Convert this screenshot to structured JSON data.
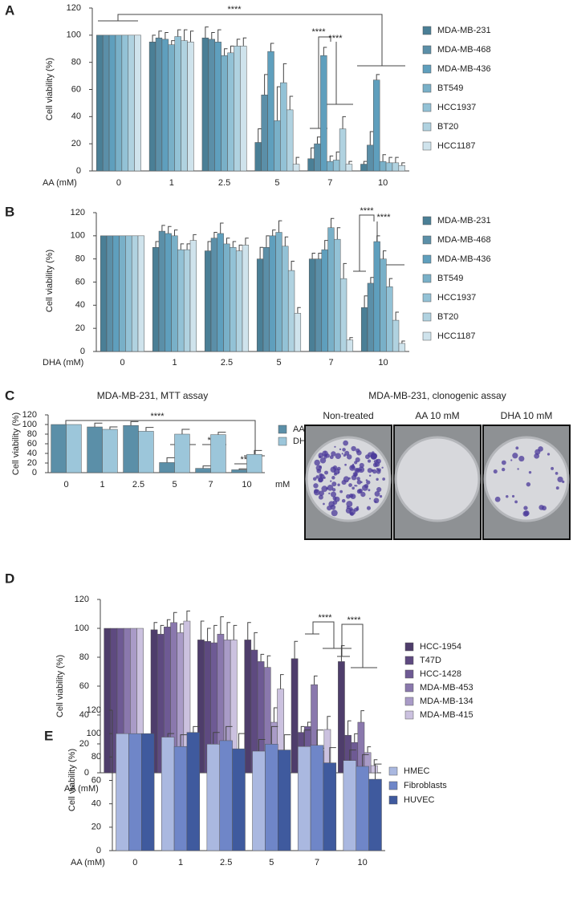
{
  "chart_data": [
    {
      "type": "bar",
      "panel_label": "A",
      "x_label": "AA (mM)",
      "y_label": "Cell viability (%)",
      "categories": [
        "0",
        "1",
        "2.5",
        "5",
        "7",
        "10"
      ],
      "ylim": [
        0,
        120
      ],
      "yticks": [
        0,
        20,
        40,
        60,
        80,
        100,
        120
      ],
      "annotations": [
        "****",
        "****",
        "****"
      ],
      "series": [
        {
          "name": "MDA-MB-231",
          "color": "#4a7f96",
          "values": [
            100,
            95,
            98,
            21,
            9,
            5
          ],
          "errors": [
            0,
            5,
            8,
            10,
            8,
            2
          ]
        },
        {
          "name": "MDA-MB-468",
          "color": "#5b8fa8",
          "values": [
            100,
            98,
            97,
            56,
            20,
            19
          ],
          "errors": [
            0,
            5,
            5,
            15,
            5,
            10
          ]
        },
        {
          "name": "MDA-MB-436",
          "color": "#5f9fbd",
          "values": [
            100,
            97,
            95,
            88,
            85,
            67
          ],
          "errors": [
            0,
            5,
            9,
            6,
            6,
            4
          ]
        },
        {
          "name": "BT549",
          "color": "#79b0c8",
          "values": [
            100,
            93,
            85,
            37,
            7,
            7
          ],
          "errors": [
            0,
            3,
            5,
            25,
            4,
            5
          ]
        },
        {
          "name": "HCC1937",
          "color": "#93c2d6",
          "values": [
            100,
            99,
            87,
            65,
            8,
            6
          ],
          "errors": [
            0,
            5,
            5,
            14,
            6,
            4
          ]
        },
        {
          "name": "BT20",
          "color": "#b0d2e0",
          "values": [
            100,
            96,
            92,
            45,
            31,
            6
          ],
          "errors": [
            0,
            8,
            5,
            10,
            9,
            4
          ]
        },
        {
          "name": "HCC1187",
          "color": "#cfe3ec",
          "values": [
            100,
            95,
            92,
            5,
            5,
            4
          ],
          "errors": [
            0,
            8,
            6,
            5,
            2,
            2
          ]
        }
      ]
    },
    {
      "type": "bar",
      "panel_label": "B",
      "x_label": "DHA (mM)",
      "y_label": "Cell viability (%)",
      "categories": [
        "0",
        "1",
        "2.5",
        "5",
        "7",
        "10"
      ],
      "ylim": [
        0,
        120
      ],
      "yticks": [
        0,
        20,
        40,
        60,
        80,
        100,
        120
      ],
      "annotations": [
        "****",
        "****"
      ],
      "series": [
        {
          "name": "MDA-MB-231",
          "color": "#4a7f96",
          "values": [
            100,
            90,
            87,
            80,
            80,
            38
          ],
          "errors": [
            0,
            5,
            8,
            10,
            5,
            10
          ]
        },
        {
          "name": "MDA-MB-468",
          "color": "#5b8fa8",
          "values": [
            100,
            104,
            98,
            90,
            80,
            59
          ],
          "errors": [
            0,
            5,
            5,
            10,
            5,
            5
          ]
        },
        {
          "name": "MDA-MB-436",
          "color": "#5f9fbd",
          "values": [
            100,
            102,
            102,
            100,
            88,
            95
          ],
          "errors": [
            0,
            6,
            9,
            5,
            8,
            5
          ]
        },
        {
          "name": "BT549",
          "color": "#79b0c8",
          "values": [
            100,
            100,
            93,
            103,
            107,
            80
          ],
          "errors": [
            0,
            5,
            5,
            10,
            8,
            7
          ]
        },
        {
          "name": "HCC1937",
          "color": "#93c2d6",
          "values": [
            100,
            88,
            90,
            91,
            97,
            56
          ],
          "errors": [
            0,
            5,
            5,
            8,
            10,
            7
          ]
        },
        {
          "name": "BT20",
          "color": "#b0d2e0",
          "values": [
            100,
            88,
            87,
            70,
            63,
            27
          ],
          "errors": [
            0,
            5,
            5,
            8,
            13,
            7
          ]
        },
        {
          "name": "HCC1187",
          "color": "#cfe3ec",
          "values": [
            100,
            96,
            92,
            33,
            10,
            7
          ],
          "errors": [
            0,
            5,
            6,
            5,
            2,
            2
          ]
        }
      ]
    },
    {
      "type": "bar",
      "panel_label": "C",
      "title": "MDA-MB-231, MTT assay",
      "x_label": "mM",
      "y_label": "Cell viability (%)",
      "categories": [
        "0",
        "1",
        "2.5",
        "5",
        "7",
        "10"
      ],
      "ylim": [
        0,
        120
      ],
      "yticks": [
        0,
        20,
        40,
        60,
        80,
        100,
        120
      ],
      "annotations": [
        "****",
        "****",
        "****",
        "****"
      ],
      "image_title": "MDA-MB-231, clonogenic assay",
      "image_labels": [
        "Non-treated",
        "AA 10 mM",
        "DHA 10 mM"
      ],
      "series": [
        {
          "name": "AA",
          "color": "#5b8fa8",
          "values": [
            100,
            95,
            98,
            21,
            9,
            6
          ],
          "errors": [
            0,
            8,
            8,
            10,
            5,
            2
          ]
        },
        {
          "name": "DHA",
          "color": "#9cc6da",
          "values": [
            100,
            90,
            86,
            80,
            79,
            38
          ],
          "errors": [
            0,
            5,
            8,
            10,
            5,
            8
          ]
        }
      ]
    },
    {
      "type": "bar",
      "panel_label": "D",
      "x_label": "AA (mM)",
      "y_label": "Cell viability (%)",
      "categories": [
        "0",
        "1",
        "2.5",
        "5",
        "7",
        "10"
      ],
      "ylim": [
        0,
        120
      ],
      "yticks": [
        0,
        20,
        40,
        60,
        80,
        100,
        120
      ],
      "annotations": [
        "****",
        "****"
      ],
      "series": [
        {
          "name": "HCC-1954",
          "color": "#4e3d6b",
          "values": [
            100,
            99,
            92,
            92,
            79,
            77
          ],
          "errors": [
            0,
            5,
            13,
            12,
            12,
            11
          ]
        },
        {
          "name": "T47D",
          "color": "#5e4a80",
          "values": [
            100,
            96,
            91,
            85,
            28,
            26
          ],
          "errors": [
            0,
            6,
            9,
            12,
            4,
            10
          ]
        },
        {
          "name": "HCC-1428",
          "color": "#6e5a94",
          "values": [
            100,
            101,
            90,
            77,
            32,
            21
          ],
          "errors": [
            0,
            5,
            12,
            5,
            3,
            6
          ]
        },
        {
          "name": "MDA-MB-453",
          "color": "#8a78ad",
          "values": [
            100,
            104,
            96,
            73,
            61,
            35
          ],
          "errors": [
            0,
            7,
            12,
            8,
            6,
            8
          ]
        },
        {
          "name": "MDA-MB-134",
          "color": "#a99bc7",
          "values": [
            100,
            97,
            92,
            35,
            15,
            14
          ],
          "errors": [
            0,
            6,
            12,
            10,
            2,
            4
          ]
        },
        {
          "name": "MDA-MB-415",
          "color": "#cbc1df",
          "values": [
            100,
            105,
            92,
            58,
            30,
            5
          ],
          "errors": [
            0,
            7,
            10,
            10,
            9,
            4
          ]
        }
      ]
    },
    {
      "type": "bar",
      "panel_label": "E",
      "x_label": "AA (mM)",
      "y_label": "Cell viability (%)",
      "categories": [
        "0",
        "1",
        "2.5",
        "5",
        "7",
        "10"
      ],
      "ylim": [
        0,
        120
      ],
      "yticks": [
        0,
        20,
        40,
        60,
        80,
        100,
        120
      ],
      "series": [
        {
          "name": "HMEC",
          "color": "#aab8e0",
          "values": [
            100,
            97,
            91,
            85,
            89,
            77
          ],
          "errors": [
            0,
            3,
            10,
            10,
            14,
            9
          ]
        },
        {
          "name": "Fibroblasts",
          "color": "#6f86c8",
          "values": [
            100,
            89,
            94,
            91,
            90,
            72
          ],
          "errors": [
            0,
            10,
            12,
            15,
            13,
            10
          ]
        },
        {
          "name": "HUVEC",
          "color": "#3f5a9e",
          "values": [
            100,
            101,
            87,
            86,
            75,
            61
          ],
          "errors": [
            0,
            5,
            13,
            13,
            13,
            13
          ]
        }
      ]
    }
  ]
}
